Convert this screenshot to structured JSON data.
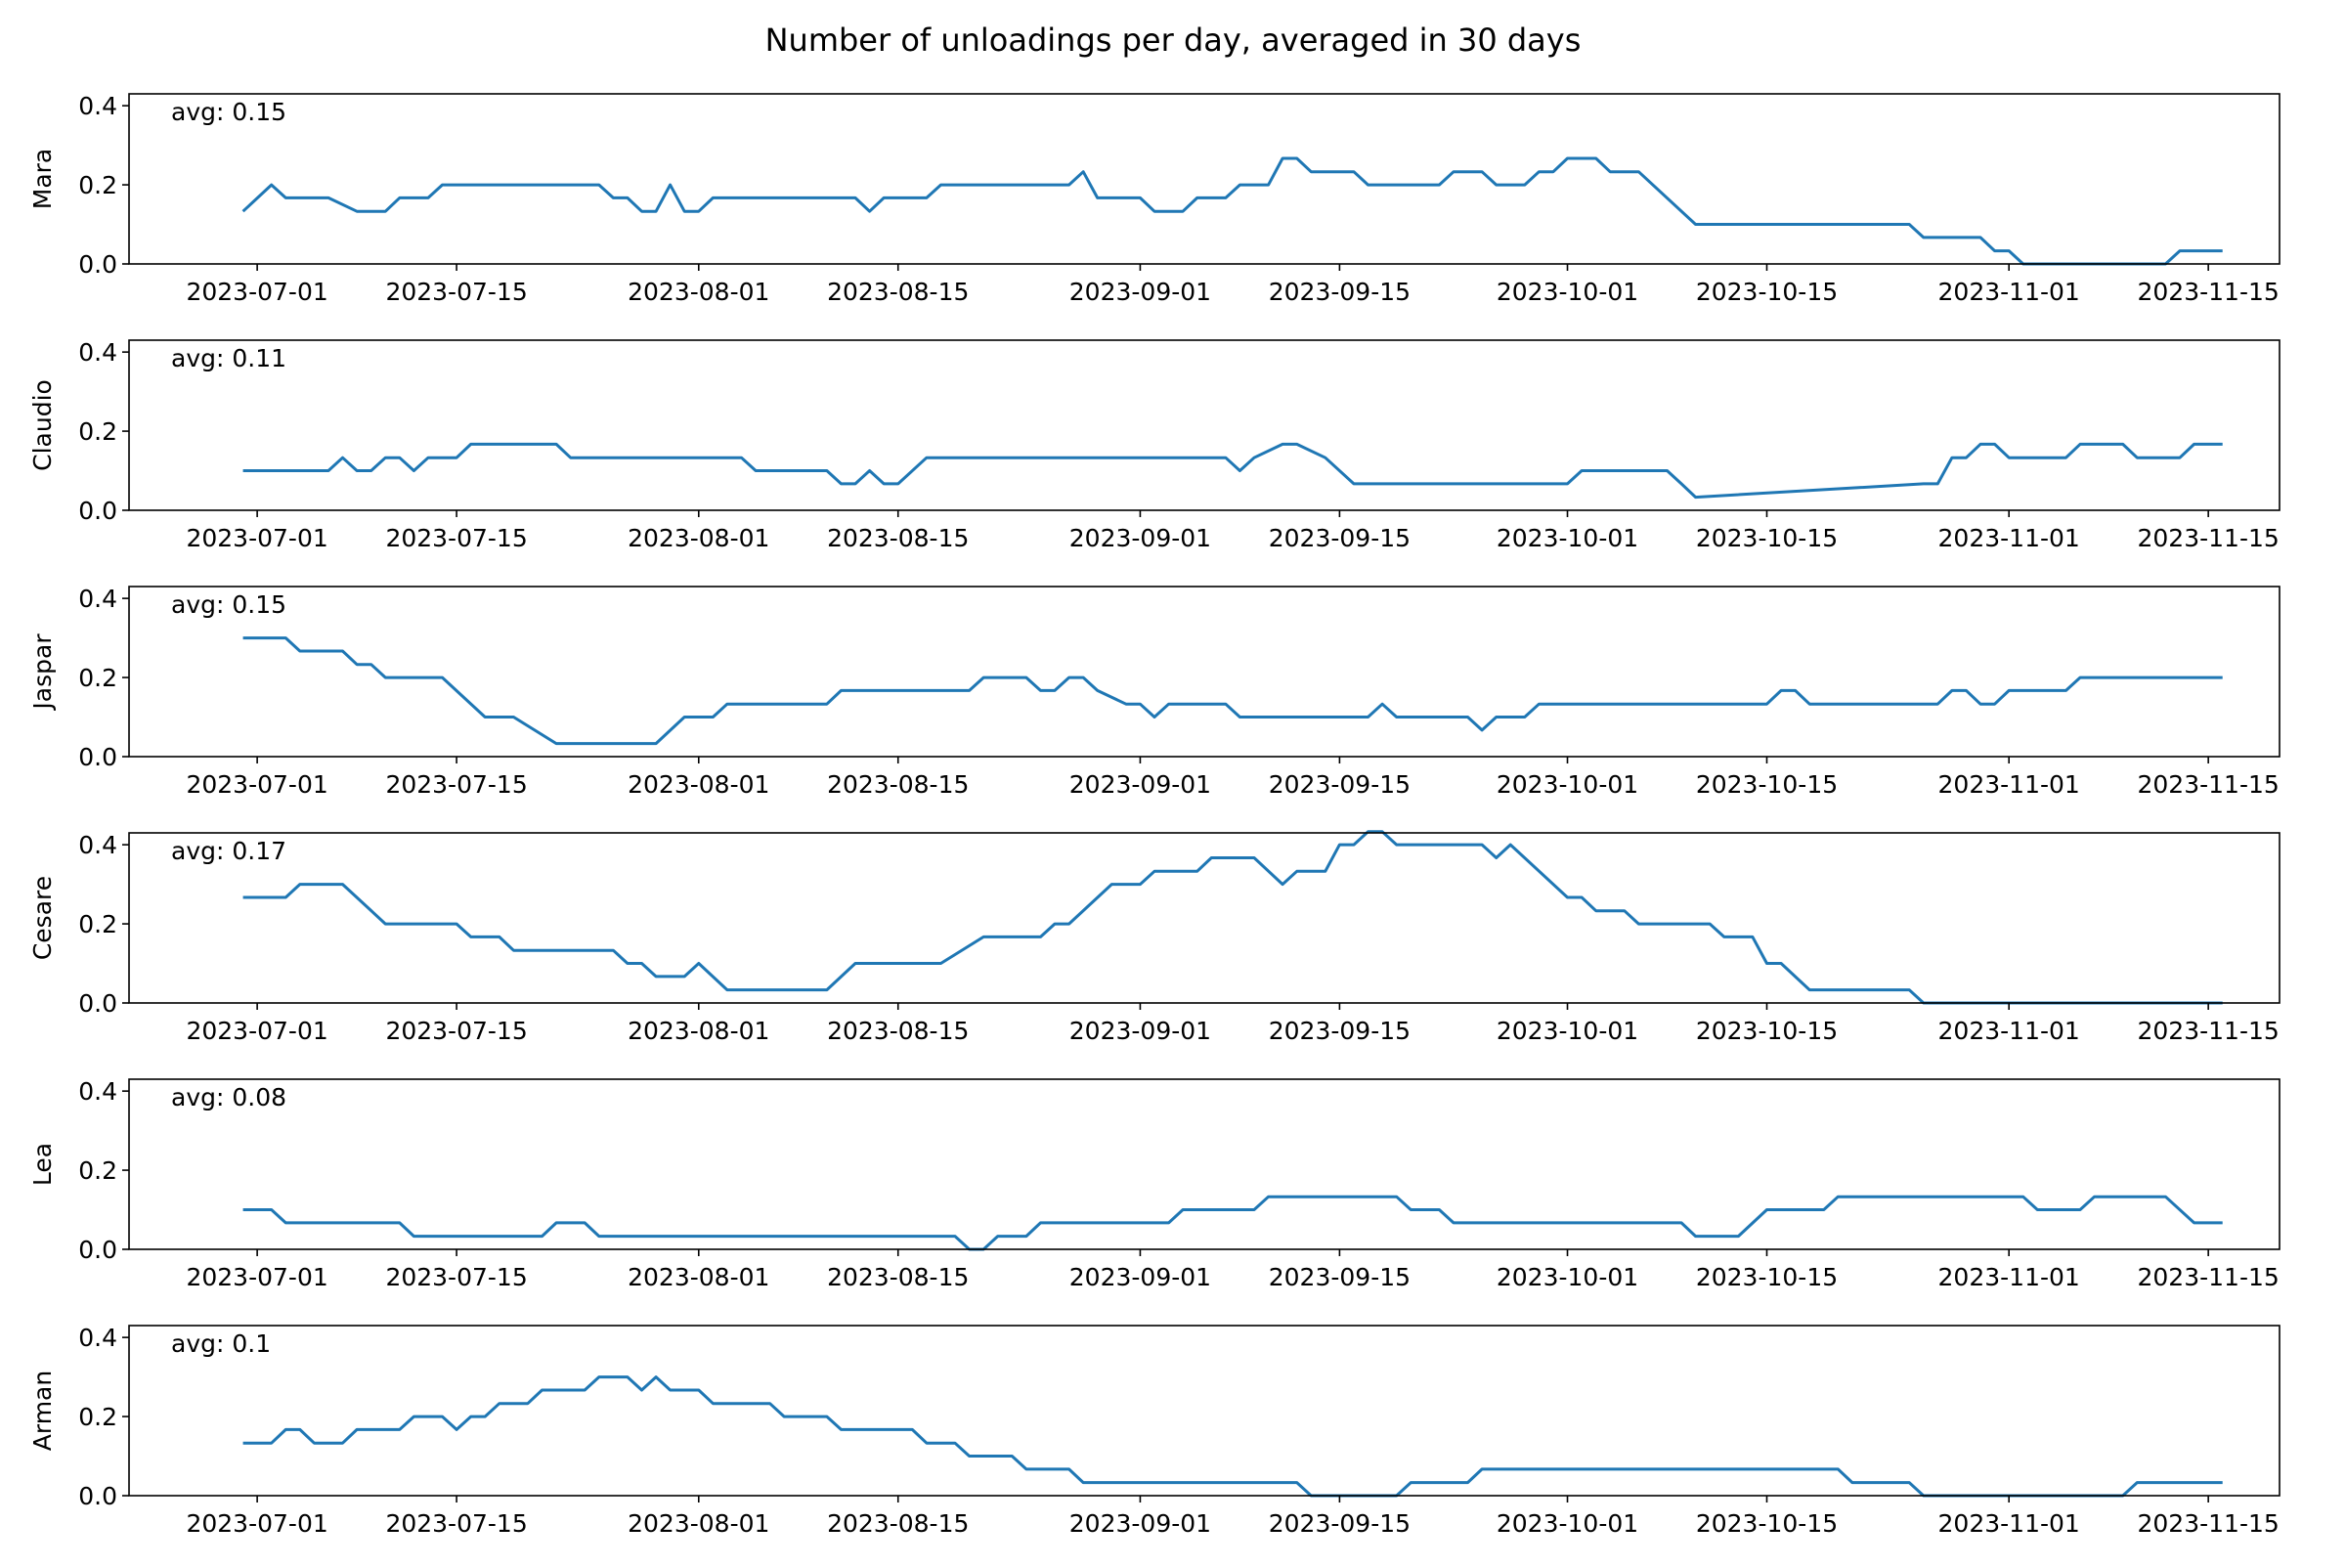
{
  "title": "Number of unloadings per day, averaged in 30 days",
  "colors": {
    "line": "#1f77b4",
    "axes": "#000000",
    "background": "#ffffff"
  },
  "chart_data": {
    "type": "line",
    "shared_x_ticks": [
      "2023-07-01",
      "2023-07-15",
      "2023-08-01",
      "2023-08-15",
      "2023-09-01",
      "2023-09-15",
      "2023-10-01",
      "2023-10-15",
      "2023-11-01",
      "2023-11-15"
    ],
    "x_range": [
      "2023-06-22",
      "2023-11-20"
    ],
    "grid": false,
    "panels": [
      {
        "ylabel": "Mara",
        "annotation": "avg: 0.15",
        "ylim": [
          0,
          0.43
        ],
        "yticks": [
          "0.0",
          "0.2",
          "0.4"
        ],
        "x": [
          "2023-06-30",
          "2023-07-02",
          "2023-07-03",
          "2023-07-05",
          "2023-07-06",
          "2023-07-08",
          "2023-07-10",
          "2023-07-11",
          "2023-07-13",
          "2023-07-14",
          "2023-07-25",
          "2023-07-26",
          "2023-07-27",
          "2023-07-28",
          "2023-07-29",
          "2023-07-30",
          "2023-07-31",
          "2023-08-01",
          "2023-08-02",
          "2023-08-12",
          "2023-08-13",
          "2023-08-14",
          "2023-08-17",
          "2023-08-18",
          "2023-08-27",
          "2023-08-28",
          "2023-08-29",
          "2023-09-01",
          "2023-09-02",
          "2023-09-04",
          "2023-09-05",
          "2023-09-07",
          "2023-09-08",
          "2023-09-10",
          "2023-09-11",
          "2023-09-12",
          "2023-09-13",
          "2023-09-16",
          "2023-09-17",
          "2023-09-22",
          "2023-09-23",
          "2023-09-25",
          "2023-09-26",
          "2023-09-28",
          "2023-09-29",
          "2023-09-30",
          "2023-10-01",
          "2023-10-03",
          "2023-10-04",
          "2023-10-06",
          "2023-10-10",
          "2023-10-25",
          "2023-10-26",
          "2023-10-30",
          "2023-10-31",
          "2023-11-01",
          "2023-11-02",
          "2023-11-12",
          "2023-11-13",
          "2023-11-16"
        ],
        "y": [
          0.133,
          0.2,
          0.167,
          0.167,
          0.167,
          0.133,
          0.133,
          0.167,
          0.167,
          0.2,
          0.2,
          0.167,
          0.167,
          0.133,
          0.133,
          0.2,
          0.133,
          0.133,
          0.167,
          0.167,
          0.133,
          0.167,
          0.167,
          0.2,
          0.2,
          0.233,
          0.167,
          0.167,
          0.133,
          0.133,
          0.167,
          0.167,
          0.2,
          0.2,
          0.267,
          0.267,
          0.233,
          0.233,
          0.2,
          0.2,
          0.233,
          0.233,
          0.2,
          0.2,
          0.233,
          0.233,
          0.267,
          0.267,
          0.233,
          0.233,
          0.1,
          0.1,
          0.067,
          0.067,
          0.033,
          0.033,
          0.0,
          0.0,
          0.033,
          0.033
        ]
      },
      {
        "ylabel": "Claudio",
        "annotation": "avg: 0.11",
        "ylim": [
          0,
          0.43
        ],
        "yticks": [
          "0.0",
          "0.2",
          "0.4"
        ],
        "x": [
          "2023-06-30",
          "2023-07-06",
          "2023-07-07",
          "2023-07-08",
          "2023-07-09",
          "2023-07-10",
          "2023-07-11",
          "2023-07-12",
          "2023-07-13",
          "2023-07-14",
          "2023-07-15",
          "2023-07-16",
          "2023-07-22",
          "2023-07-23",
          "2023-08-04",
          "2023-08-05",
          "2023-08-10",
          "2023-08-11",
          "2023-08-12",
          "2023-08-13",
          "2023-08-14",
          "2023-08-15",
          "2023-08-17",
          "2023-09-07",
          "2023-09-08",
          "2023-09-09",
          "2023-09-11",
          "2023-09-12",
          "2023-09-14",
          "2023-09-16",
          "2023-10-01",
          "2023-10-02",
          "2023-10-08",
          "2023-10-09",
          "2023-10-10",
          "2023-10-26",
          "2023-10-27",
          "2023-10-28",
          "2023-10-29",
          "2023-10-30",
          "2023-10-31",
          "2023-11-01",
          "2023-11-05",
          "2023-11-06",
          "2023-11-09",
          "2023-11-10",
          "2023-11-13",
          "2023-11-14",
          "2023-11-16"
        ],
        "y": [
          0.1,
          0.1,
          0.133,
          0.1,
          0.1,
          0.133,
          0.133,
          0.1,
          0.133,
          0.133,
          0.133,
          0.167,
          0.167,
          0.133,
          0.133,
          0.1,
          0.1,
          0.067,
          0.067,
          0.1,
          0.067,
          0.067,
          0.133,
          0.133,
          0.1,
          0.133,
          0.167,
          0.167,
          0.133,
          0.067,
          0.067,
          0.1,
          0.1,
          0.067,
          0.033,
          0.067,
          0.067,
          0.133,
          0.133,
          0.167,
          0.167,
          0.133,
          0.133,
          0.167,
          0.167,
          0.133,
          0.133,
          0.167,
          0.167
        ]
      },
      {
        "ylabel": "Jaspar",
        "annotation": "avg: 0.15",
        "ylim": [
          0,
          0.43
        ],
        "yticks": [
          "0.0",
          "0.2",
          "0.4"
        ],
        "x": [
          "2023-06-30",
          "2023-07-03",
          "2023-07-04",
          "2023-07-07",
          "2023-07-08",
          "2023-07-09",
          "2023-07-10",
          "2023-07-11",
          "2023-07-14",
          "2023-07-17",
          "2023-07-19",
          "2023-07-22",
          "2023-07-29",
          "2023-07-31",
          "2023-08-02",
          "2023-08-03",
          "2023-08-10",
          "2023-08-11",
          "2023-08-20",
          "2023-08-21",
          "2023-08-24",
          "2023-08-25",
          "2023-08-26",
          "2023-08-27",
          "2023-08-28",
          "2023-08-29",
          "2023-08-31",
          "2023-09-01",
          "2023-09-02",
          "2023-09-03",
          "2023-09-04",
          "2023-09-07",
          "2023-09-08",
          "2023-09-17",
          "2023-09-18",
          "2023-09-19",
          "2023-09-24",
          "2023-09-25",
          "2023-09-26",
          "2023-09-28",
          "2023-09-29",
          "2023-10-15",
          "2023-10-16",
          "2023-10-17",
          "2023-10-18",
          "2023-10-27",
          "2023-10-28",
          "2023-10-29",
          "2023-10-30",
          "2023-10-31",
          "2023-11-01",
          "2023-11-05",
          "2023-11-06",
          "2023-11-16"
        ],
        "y": [
          0.3,
          0.3,
          0.267,
          0.267,
          0.233,
          0.233,
          0.2,
          0.2,
          0.2,
          0.1,
          0.1,
          0.033,
          0.033,
          0.1,
          0.1,
          0.133,
          0.133,
          0.167,
          0.167,
          0.2,
          0.2,
          0.167,
          0.167,
          0.2,
          0.2,
          0.167,
          0.133,
          0.133,
          0.1,
          0.133,
          0.133,
          0.133,
          0.1,
          0.1,
          0.133,
          0.1,
          0.1,
          0.067,
          0.1,
          0.1,
          0.133,
          0.133,
          0.167,
          0.167,
          0.133,
          0.133,
          0.167,
          0.167,
          0.133,
          0.133,
          0.167,
          0.167,
          0.2,
          0.2
        ]
      },
      {
        "ylabel": "Cesare",
        "annotation": "avg: 0.17",
        "ylim": [
          0,
          0.43
        ],
        "yticks": [
          "0.0",
          "0.2",
          "0.4"
        ],
        "x": [
          "2023-06-30",
          "2023-07-03",
          "2023-07-04",
          "2023-07-07",
          "2023-07-10",
          "2023-07-15",
          "2023-07-16",
          "2023-07-18",
          "2023-07-19",
          "2023-07-26",
          "2023-07-27",
          "2023-07-28",
          "2023-07-29",
          "2023-07-31",
          "2023-08-01",
          "2023-08-03",
          "2023-08-10",
          "2023-08-12",
          "2023-08-18",
          "2023-08-21",
          "2023-08-25",
          "2023-08-26",
          "2023-08-27",
          "2023-08-30",
          "2023-09-01",
          "2023-09-02",
          "2023-09-05",
          "2023-09-06",
          "2023-09-09",
          "2023-09-11",
          "2023-09-12",
          "2023-09-14",
          "2023-09-15",
          "2023-09-16",
          "2023-09-17",
          "2023-09-18",
          "2023-09-19",
          "2023-09-25",
          "2023-09-26",
          "2023-09-27",
          "2023-10-01",
          "2023-10-02",
          "2023-10-03",
          "2023-10-05",
          "2023-10-06",
          "2023-10-11",
          "2023-10-12",
          "2023-10-14",
          "2023-10-15",
          "2023-10-16",
          "2023-10-18",
          "2023-10-25",
          "2023-10-26",
          "2023-11-16"
        ],
        "y": [
          0.267,
          0.267,
          0.3,
          0.3,
          0.2,
          0.2,
          0.167,
          0.167,
          0.133,
          0.133,
          0.1,
          0.1,
          0.067,
          0.067,
          0.1,
          0.033,
          0.033,
          0.1,
          0.1,
          0.167,
          0.167,
          0.2,
          0.2,
          0.3,
          0.3,
          0.333,
          0.333,
          0.367,
          0.367,
          0.3,
          0.333,
          0.333,
          0.4,
          0.4,
          0.433,
          0.433,
          0.4,
          0.4,
          0.367,
          0.4,
          0.267,
          0.267,
          0.233,
          0.233,
          0.2,
          0.2,
          0.167,
          0.167,
          0.1,
          0.1,
          0.033,
          0.033,
          0.0,
          0.0
        ]
      },
      {
        "ylabel": "Lea",
        "annotation": "avg: 0.08",
        "ylim": [
          0,
          0.43
        ],
        "yticks": [
          "0.0",
          "0.2",
          "0.4"
        ],
        "x": [
          "2023-06-30",
          "2023-07-02",
          "2023-07-03",
          "2023-07-11",
          "2023-07-12",
          "2023-07-21",
          "2023-07-22",
          "2023-07-24",
          "2023-07-25",
          "2023-08-19",
          "2023-08-20",
          "2023-08-21",
          "2023-08-22",
          "2023-08-24",
          "2023-08-25",
          "2023-09-03",
          "2023-09-04",
          "2023-09-09",
          "2023-09-10",
          "2023-09-19",
          "2023-09-20",
          "2023-09-22",
          "2023-09-23",
          "2023-10-09",
          "2023-10-10",
          "2023-10-13",
          "2023-10-15",
          "2023-10-19",
          "2023-10-20",
          "2023-11-02",
          "2023-11-03",
          "2023-11-06",
          "2023-11-07",
          "2023-11-12",
          "2023-11-14",
          "2023-11-16"
        ],
        "y": [
          0.1,
          0.1,
          0.067,
          0.067,
          0.033,
          0.033,
          0.067,
          0.067,
          0.033,
          0.033,
          0.0,
          0.0,
          0.033,
          0.033,
          0.067,
          0.067,
          0.1,
          0.1,
          0.133,
          0.133,
          0.1,
          0.1,
          0.067,
          0.067,
          0.033,
          0.033,
          0.1,
          0.1,
          0.133,
          0.133,
          0.1,
          0.1,
          0.133,
          0.133,
          0.067,
          0.067
        ]
      },
      {
        "ylabel": "Arman",
        "annotation": "avg: 0.1",
        "ylim": [
          0,
          0.43
        ],
        "yticks": [
          "0.0",
          "0.2",
          "0.4"
        ],
        "x": [
          "2023-06-30",
          "2023-07-02",
          "2023-07-03",
          "2023-07-04",
          "2023-07-05",
          "2023-07-07",
          "2023-07-08",
          "2023-07-11",
          "2023-07-12",
          "2023-07-14",
          "2023-07-15",
          "2023-07-16",
          "2023-07-17",
          "2023-07-18",
          "2023-07-20",
          "2023-07-21",
          "2023-07-24",
          "2023-07-25",
          "2023-07-27",
          "2023-07-28",
          "2023-07-29",
          "2023-07-30",
          "2023-08-01",
          "2023-08-02",
          "2023-08-06",
          "2023-08-07",
          "2023-08-10",
          "2023-08-11",
          "2023-08-16",
          "2023-08-17",
          "2023-08-19",
          "2023-08-20",
          "2023-08-23",
          "2023-08-24",
          "2023-08-27",
          "2023-08-28",
          "2023-09-12",
          "2023-09-13",
          "2023-09-19",
          "2023-09-20",
          "2023-09-24",
          "2023-09-25",
          "2023-10-20",
          "2023-10-21",
          "2023-10-25",
          "2023-10-26",
          "2023-11-09",
          "2023-11-10",
          "2023-11-16"
        ],
        "y": [
          0.133,
          0.133,
          0.167,
          0.167,
          0.133,
          0.133,
          0.167,
          0.167,
          0.2,
          0.2,
          0.167,
          0.2,
          0.2,
          0.233,
          0.233,
          0.267,
          0.267,
          0.3,
          0.3,
          0.267,
          0.3,
          0.267,
          0.267,
          0.233,
          0.233,
          0.2,
          0.2,
          0.167,
          0.167,
          0.133,
          0.133,
          0.1,
          0.1,
          0.067,
          0.067,
          0.033,
          0.033,
          0.0,
          0.0,
          0.033,
          0.033,
          0.067,
          0.067,
          0.033,
          0.033,
          0.0,
          0.0,
          0.033,
          0.033
        ]
      }
    ]
  }
}
